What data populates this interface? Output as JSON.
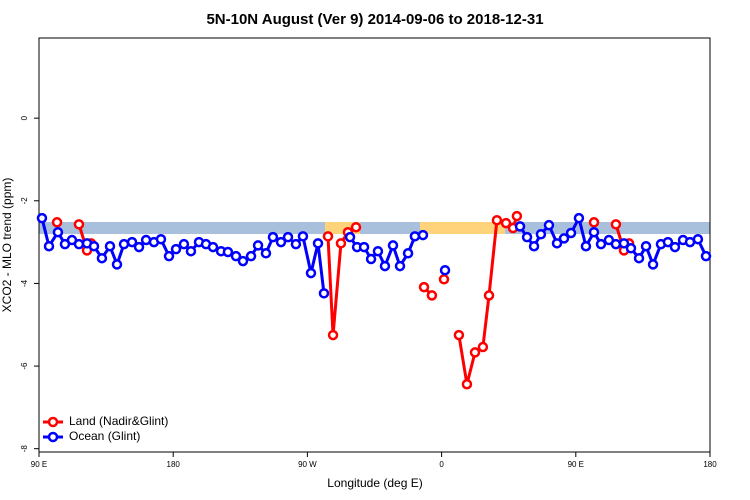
{
  "chart_data": {
    "type": "line",
    "title": "5N-10N August (Ver 9)   2014-09-06 to 2018-12-31",
    "xlabel": "Longitude (deg E)",
    "ylabel": "XCO2 - MLO trend (ppm)",
    "xlim": [
      90,
      540
    ],
    "ylim": [
      -8.08,
      1.94
    ],
    "xticks": [
      {
        "value": 90,
        "label": "90 E"
      },
      180,
      {
        "value": 270,
        "label": "90 W"
      },
      {
        "value": 360,
        "label": "0"
      },
      {
        "value": 450,
        "label": "90 E"
      },
      {
        "value": 540,
        "label": "180"
      }
    ],
    "yticks": [
      0,
      -2,
      -4,
      -6,
      -8
    ],
    "legend": "bottom-left",
    "series": [
      {
        "name": "Land (Nadir&Glint)",
        "color": "#ff0000",
        "x": [
          102.1,
          null,
          116.8,
          122.2,
          124.9,
          null,
          283.8,
          287.2,
          292.5,
          297.2,
          302.6,
          null,
          348.2,
          353.5,
          null,
          361.6,
          null,
          371.6,
          377.0,
          382.4,
          387.7,
          391.8,
          397.1,
          403.2,
          407.9,
          410.5,
          null,
          462.2,
          null,
          476.9,
          482.3,
          485.7
        ],
        "values": [
          -2.52,
          null,
          -2.57,
          -3.2,
          -3.03,
          null,
          -2.86,
          -5.25,
          -3.03,
          -2.76,
          -2.64,
          null,
          -4.09,
          -4.29,
          null,
          -3.9,
          null,
          -5.25,
          -6.44,
          -5.67,
          -5.54,
          -4.29,
          -2.47,
          -2.54,
          -2.66,
          -2.37,
          null,
          -2.52,
          null,
          -2.57,
          -3.2,
          -3.03
        ]
      },
      {
        "name": "Ocean (Glint)",
        "color": "#0000ff",
        "x": [
          92.0,
          96.7,
          102.7,
          107.4,
          112.1,
          116.8,
          122.2,
          126.9,
          132.2,
          137.6,
          142.3,
          147.0,
          152.4,
          157.1,
          161.8,
          167.1,
          171.8,
          177.2,
          181.9,
          187.2,
          191.9,
          197.3,
          202.0,
          206.7,
          212.1,
          216.7,
          222.1,
          226.8,
          232.2,
          236.9,
          242.2,
          246.9,
          252.3,
          257.0,
          262.3,
          267.0,
          272.4,
          277.1,
          281.1,
          null,
          298.6,
          303.3,
          308.0,
          312.7,
          317.3,
          322.0,
          327.4,
          332.1,
          337.5,
          342.1,
          347.5,
          null,
          362.3,
          null,
          412.6,
          417.3,
          422.0,
          426.6,
          432.0,
          437.4,
          442.1,
          446.8,
          452.1,
          456.8,
          462.2,
          466.9,
          472.2,
          476.9,
          482.3,
          487.0,
          492.4,
          497.1,
          501.8,
          507.1,
          511.8,
          516.5,
          521.9,
          526.6,
          531.9,
          537.3
        ],
        "values": [
          -2.42,
          -3.1,
          -2.76,
          -3.05,
          -2.95,
          -3.05,
          -3.03,
          -3.1,
          -3.39,
          -3.1,
          -3.54,
          -3.05,
          -3.0,
          -3.12,
          -2.95,
          -3.0,
          -2.93,
          -3.34,
          -3.17,
          -3.05,
          -3.22,
          -3.0,
          -3.05,
          -3.12,
          -3.22,
          -3.24,
          -3.34,
          -3.46,
          -3.34,
          -3.08,
          -3.27,
          -2.88,
          -3.0,
          -2.88,
          -3.05,
          -2.86,
          -3.75,
          -3.03,
          -4.24,
          null,
          -2.88,
          -3.12,
          -3.12,
          -3.41,
          -3.22,
          -3.58,
          -3.08,
          -3.58,
          -3.27,
          -2.86,
          -2.83,
          null,
          -3.68,
          null,
          -2.62,
          -2.88,
          -3.1,
          -2.81,
          -2.59,
          -3.03,
          -2.91,
          -2.78,
          -2.42,
          -3.1,
          -2.76,
          -3.05,
          -2.95,
          -3.05,
          -3.03,
          -3.15,
          -3.39,
          -3.1,
          -3.54,
          -3.05,
          -3.0,
          -3.12,
          -2.95,
          -3.0,
          -2.93,
          -3.34
        ]
      }
    ]
  }
}
